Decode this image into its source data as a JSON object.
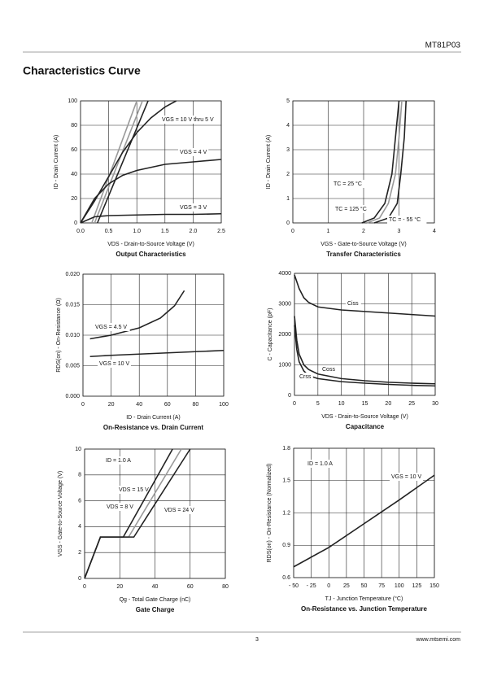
{
  "header": {
    "part": "MT81P03"
  },
  "title": "Characteristics Curve",
  "chart_data": [
    {
      "type": "line",
      "title": "Output Characteristics",
      "xlabel": "VDS - Drain-to-Source Voltage (V)",
      "ylabel": "ID - Drain Current (A)",
      "xlim": [
        0,
        2.5
      ],
      "ylim": [
        0,
        100
      ],
      "xticks": [
        {
          "value": 0,
          "label": "0.0"
        },
        {
          "value": 0.5,
          "label": "0.5"
        },
        {
          "value": 1,
          "label": "1.0"
        },
        {
          "value": 1.5,
          "label": "1.5"
        },
        {
          "value": 2,
          "label": "2.0"
        },
        {
          "value": 2.5,
          "label": "2.5"
        }
      ],
      "yticks": [
        0,
        20,
        40,
        60,
        80,
        100
      ],
      "grid": true,
      "series": [
        {
          "color": "#999999",
          "x": [
            0.2,
            1.0
          ],
          "values": [
            0,
            100
          ]
        },
        {
          "color": "#999999",
          "x": [
            0.25,
            1.1
          ],
          "values": [
            0,
            100
          ]
        },
        {
          "color": "#222222",
          "x": [
            0.3,
            1.2
          ],
          "values": [
            0,
            100
          ]
        },
        {
          "name": "VGS = 10 V thru 5 V",
          "color": "#222222",
          "x": [
            0,
            0.25,
            0.5,
            0.75,
            1.0,
            1.25,
            1.5,
            1.7
          ],
          "values": [
            0,
            18,
            38,
            58,
            74,
            86,
            95,
            100
          ]
        },
        {
          "name": "VGS = 4 V",
          "color": "#222222",
          "x": [
            0,
            0.25,
            0.5,
            0.75,
            1.0,
            1.5,
            2.0,
            2.5
          ],
          "values": [
            0,
            20,
            32,
            39,
            43,
            48,
            50,
            52
          ]
        },
        {
          "name": "VGS = 3 V",
          "color": "#222222",
          "x": [
            0,
            0.25,
            0.5,
            1.0,
            1.5,
            2.0,
            2.5
          ],
          "values": [
            0,
            5,
            6,
            6.5,
            7,
            7,
            7.5
          ]
        }
      ]
    },
    {
      "type": "line",
      "title": "Transfer Characteristics",
      "xlabel": "VGS - Gate-to-Source Voltage (V)",
      "ylabel": "ID - Drain Current (A)",
      "xlim": [
        0,
        4
      ],
      "ylim": [
        0,
        5
      ],
      "xticks": [
        0,
        1,
        2,
        3,
        4
      ],
      "yticks": [
        0,
        1,
        2,
        3,
        4,
        5
      ],
      "grid": true,
      "series": [
        {
          "name": "TC = 25 °C",
          "color": "#999999",
          "x": [
            2.1,
            2.45,
            2.7,
            2.9,
            3.0,
            3.08
          ],
          "values": [
            0,
            0.2,
            0.8,
            2,
            3.5,
            5
          ]
        },
        {
          "name": "TC = 125 °C",
          "color": "#222222",
          "x": [
            1.95,
            2.3,
            2.6,
            2.8,
            2.9,
            3.0
          ],
          "values": [
            0,
            0.2,
            0.8,
            2,
            3.5,
            5
          ]
        },
        {
          "name": "TC = - 55 °C",
          "color": "#222222",
          "x": [
            2.3,
            2.7,
            2.95,
            3.05,
            3.15,
            3.2
          ],
          "values": [
            0,
            0.2,
            0.8,
            2,
            3.5,
            5
          ]
        }
      ]
    },
    {
      "type": "line",
      "title": "On-Resistance vs. Drain Current",
      "xlabel": "ID - Drain Current (A)",
      "ylabel": "RDS(on) - On-Resistance (Ω)",
      "xlim": [
        0,
        100
      ],
      "ylim": [
        0,
        0.02
      ],
      "xticks": [
        0,
        20,
        40,
        60,
        80,
        100
      ],
      "yticks": [
        {
          "value": 0,
          "label": "0.000"
        },
        {
          "value": 0.005,
          "label": "0.005"
        },
        {
          "value": 0.01,
          "label": "0.010"
        },
        {
          "value": 0.015,
          "label": "0.015"
        },
        {
          "value": 0.02,
          "label": "0.020"
        }
      ],
      "grid": true,
      "series": [
        {
          "name": "VGS = 4.5 V",
          "color": "#222222",
          "x": [
            5,
            20,
            40,
            55,
            65,
            72
          ],
          "values": [
            0.0094,
            0.01,
            0.0112,
            0.0128,
            0.0148,
            0.0173
          ]
        },
        {
          "name": "VGS = 10 V",
          "color": "#222222",
          "x": [
            5,
            20,
            40,
            60,
            80,
            100
          ],
          "values": [
            0.0065,
            0.0067,
            0.0069,
            0.0071,
            0.0073,
            0.0075
          ]
        }
      ]
    },
    {
      "type": "line",
      "title": "Capacitance",
      "xlabel": "VDS - Drain-to-Source Voltage (V)",
      "ylabel": "C - Capacitance (pF)",
      "xlim": [
        0,
        30
      ],
      "ylim": [
        0,
        4000
      ],
      "xticks": [
        0,
        5,
        10,
        15,
        20,
        25,
        30
      ],
      "yticks": [
        0,
        1000,
        2000,
        3000,
        4000
      ],
      "grid": true,
      "series": [
        {
          "name": "Ciss",
          "color": "#222222",
          "x": [
            0,
            1,
            2,
            3,
            5,
            10,
            15,
            20,
            25,
            30
          ],
          "values": [
            3950,
            3500,
            3200,
            3050,
            2900,
            2800,
            2750,
            2700,
            2650,
            2600
          ]
        },
        {
          "name": "Coss",
          "color": "#222222",
          "x": [
            0,
            0.5,
            1,
            2,
            3,
            5,
            10,
            15,
            20,
            25,
            30
          ],
          "values": [
            2600,
            1800,
            1350,
            1000,
            850,
            700,
            550,
            480,
            430,
            400,
            380
          ]
        },
        {
          "name": "Crss",
          "color": "#222222",
          "x": [
            0,
            0.5,
            1,
            2,
            3,
            5,
            10,
            15,
            20,
            25,
            30
          ],
          "values": [
            2300,
            1500,
            1100,
            800,
            650,
            550,
            450,
            400,
            360,
            330,
            310
          ]
        }
      ]
    },
    {
      "type": "line",
      "title": "Gate Charge",
      "xlabel": "Qg - Total Gate Charge (nC)",
      "ylabel": "VGS - Gate-to-Source Voltage (V)",
      "xlim": [
        0,
        80
      ],
      "ylim": [
        0,
        10
      ],
      "xticks": [
        0,
        20,
        40,
        60,
        80
      ],
      "yticks": [
        0,
        2,
        4,
        6,
        8,
        10
      ],
      "grid": true,
      "annotations": [
        "ID = 1.0 A"
      ],
      "series": [
        {
          "name": "VDS = 15 V",
          "color": "#999999",
          "x": [
            0,
            9,
            25,
            55
          ],
          "values": [
            0,
            3.2,
            3.2,
            10
          ]
        },
        {
          "name": "VDS = 8 V",
          "color": "#222222",
          "x": [
            0,
            9,
            22,
            50
          ],
          "values": [
            0,
            3.2,
            3.2,
            10
          ]
        },
        {
          "name": "VDS = 24 V",
          "color": "#222222",
          "x": [
            0,
            9,
            28,
            60
          ],
          "values": [
            0,
            3.2,
            3.2,
            10
          ]
        }
      ]
    },
    {
      "type": "line",
      "title": "On-Resistance vs. Junction Temperature",
      "xlabel": "TJ - Junction Temperature (°C)",
      "ylabel": "RDS(on) - On-Resistance (Normalized)",
      "xlim": [
        -50,
        150
      ],
      "ylim": [
        0.6,
        1.8
      ],
      "xticks": [
        {
          "value": -50,
          "label": "- 50"
        },
        {
          "value": -25,
          "label": "- 25"
        },
        0,
        25,
        50,
        75,
        100,
        125,
        150
      ],
      "yticks": [
        {
          "value": 0.6,
          "label": "0.6"
        },
        {
          "value": 0.9,
          "label": "0.9"
        },
        {
          "value": 1.2,
          "label": "1.2"
        },
        {
          "value": 1.5,
          "label": "1.5"
        },
        {
          "value": 1.8,
          "label": "1.8"
        }
      ],
      "grid": true,
      "annotations": [
        "ID = 1.0 A"
      ],
      "series": [
        {
          "name": "VGS = 10 V",
          "color": "#222222",
          "x": [
            -50,
            0,
            50,
            100,
            150
          ],
          "values": [
            0.7,
            0.88,
            1.1,
            1.32,
            1.55
          ]
        }
      ]
    }
  ],
  "footer": {
    "page": "3",
    "url": "www.mtsemi.com"
  }
}
